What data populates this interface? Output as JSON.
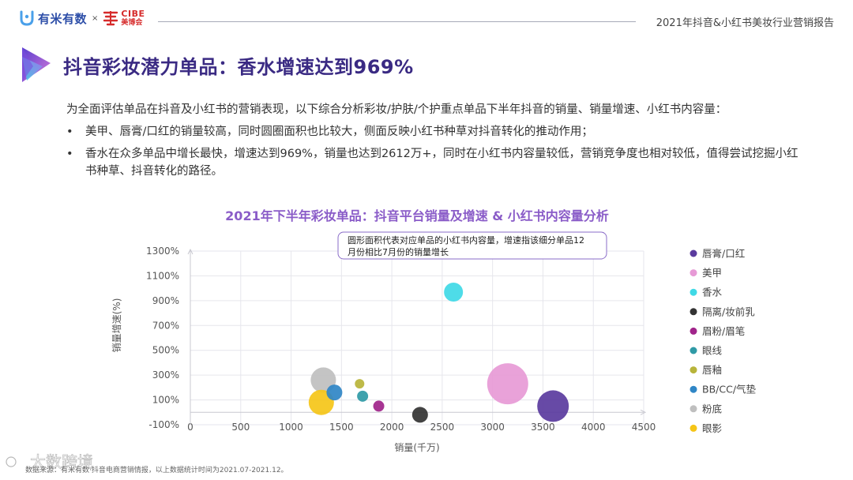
{
  "header": {
    "brand_name": "有米有数",
    "brand_separator": "×",
    "partner_en": "CIBE",
    "partner_cn": "美博会",
    "report_title": "2021年抖音&小红书美妆行业营销报告"
  },
  "page": {
    "title": "抖音彩妆潜力单品：香水增速达到969%",
    "intro": "为全面评估单品在抖音及小红书的营销表现，以下综合分析彩妆/护肤/个护重点单品下半年抖音的销量、销量增速、小红书内容量：",
    "bullets": [
      "美甲、唇膏/口红的销量较高，同时圆圈面积也比较大，侧面反映小红书种草对抖音转化的推动作用；",
      "香水在众多单品中增长最快，增速达到969%，销量也达到2612万+，同时在小红书内容量较低，营销竞争度也相对较低，值得尝试挖掘小红书种草、抖音转化的路径。"
    ],
    "bullet_symbol": "•"
  },
  "chart_data": {
    "type": "scatter",
    "title": "2021年下半年彩妆单品：抖音平台销量及增速 & 小红书内容量分析",
    "xlabel": "销量(千万)",
    "ylabel": "销量增速(%)",
    "xlim": [
      0,
      4500
    ],
    "ylim": [
      -100,
      1300
    ],
    "x_ticks": [
      0,
      500,
      1000,
      1500,
      2000,
      2500,
      3000,
      3500,
      4000,
      4500
    ],
    "y_ticks": [
      -100,
      100,
      300,
      500,
      700,
      900,
      1100,
      1300
    ],
    "y_tick_labels": [
      "-100%",
      "100%",
      "300%",
      "500%",
      "700%",
      "900%",
      "1100%",
      "1300%"
    ],
    "annotation": "圆形面积代表对应单品的小红书内容量，增速指该细分单品12月份相比7月份的销量增长",
    "legend_position": "right",
    "grid": true,
    "series": [
      {
        "name": "唇膏/口红",
        "x": 3600,
        "y": 50,
        "size": 20,
        "color": "#5a3b9e"
      },
      {
        "name": "美甲",
        "x": 3150,
        "y": 230,
        "size": 26,
        "color": "#e79ad6"
      },
      {
        "name": "香水",
        "x": 2612,
        "y": 969,
        "size": 12,
        "color": "#3fd9e6"
      },
      {
        "name": "隔离/妆前乳",
        "x": 2280,
        "y": -20,
        "size": 10,
        "color": "#333333"
      },
      {
        "name": "眉粉/眉笔",
        "x": 1870,
        "y": 50,
        "size": 7,
        "color": "#a0248a"
      },
      {
        "name": "眼线",
        "x": 1710,
        "y": 130,
        "size": 7,
        "color": "#2f9aa6"
      },
      {
        "name": "唇釉",
        "x": 1680,
        "y": 230,
        "size": 6,
        "color": "#b8b43a"
      },
      {
        "name": "BB/CC/气垫",
        "x": 1430,
        "y": 160,
        "size": 10,
        "color": "#2f86c6"
      },
      {
        "name": "粉底",
        "x": 1320,
        "y": 260,
        "size": 16,
        "color": "#bfbfbf"
      },
      {
        "name": "眼影",
        "x": 1300,
        "y": 80,
        "size": 16,
        "color": "#f5c518"
      }
    ]
  },
  "footer": {
    "source": "数据来源：有米有数·抖音电商营销情报，以上数据统计时间为2021.07-2021.12。",
    "watermark": "大数跨境"
  },
  "colors": {
    "title": "#3a2a83",
    "chart_title": "#8a5cc8",
    "brand": "#2d4ea8",
    "partner": "#d62b2b"
  }
}
